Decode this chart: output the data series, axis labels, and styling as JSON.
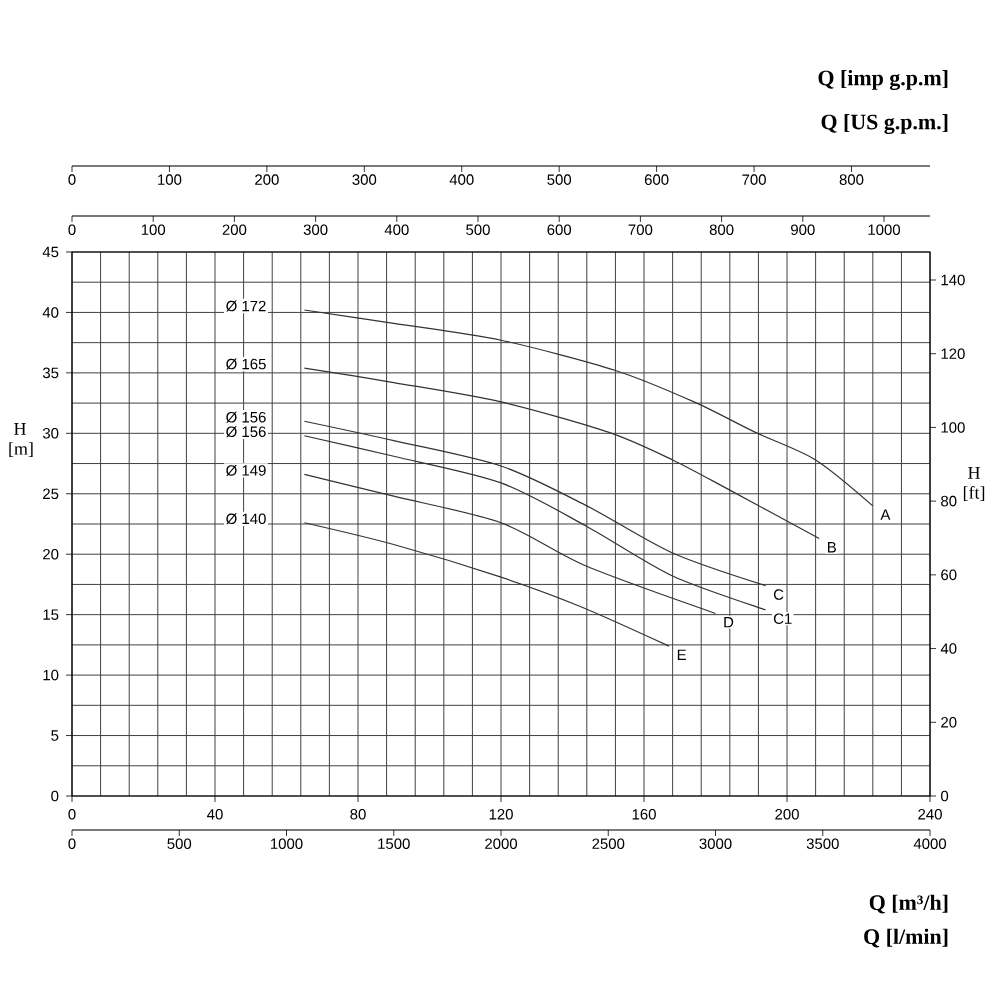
{
  "chart_data": {
    "type": "line",
    "xlabel": "Q [m³/h]",
    "ylabel": "H [m]",
    "y2label": "H [ft]",
    "x2label": "Q [imp g.p.m]",
    "xlim": [
      0,
      240
    ],
    "xticks": [
      0,
      40,
      80,
      120,
      160,
      200,
      240
    ],
    "ylim": [
      0,
      45
    ],
    "yticks": [
      0,
      5,
      10,
      15,
      20,
      25,
      30,
      35,
      40,
      45
    ],
    "y2lim": [
      0,
      147.6
    ],
    "y2ticks": [
      0,
      20,
      40,
      60,
      80,
      100,
      120,
      140
    ],
    "x2lim": [
      0,
      880.6
    ],
    "x2ticks": [
      0,
      100,
      200,
      300,
      400,
      500,
      600,
      700,
      800
    ],
    "grid": true,
    "legend": false,
    "marker": "none",
    "line_style": "solid",
    "series": [
      {
        "name": "Ø 172",
        "color": "#333333",
        "x": [
          65,
          90,
          120,
          152,
          174,
          191,
          208,
          224
        ],
        "values": [
          40.2,
          39.1,
          37.7,
          35.2,
          32.6,
          30.1,
          27.8,
          24.0
        ]
      },
      {
        "name": "Ø 165",
        "color": "#333333",
        "x": [
          65,
          90,
          120,
          150,
          168,
          184,
          209
        ],
        "values": [
          35.4,
          34.2,
          32.6,
          30.1,
          27.8,
          25.3,
          21.3
        ]
      },
      {
        "name": "Ø 156",
        "color": "#333333",
        "x": [
          65,
          90,
          120,
          144,
          168,
          194
        ],
        "values": [
          31.0,
          29.4,
          27.3,
          24.0,
          20.1,
          17.4
        ]
      },
      {
        "name": "Ø 156",
        "color": "#333333",
        "x": [
          65,
          90,
          120,
          144,
          168,
          194
        ],
        "values": [
          29.8,
          28.1,
          25.9,
          22.3,
          18.2,
          15.4
        ]
      },
      {
        "name": "Ø 149",
        "color": "#333333",
        "x": [
          65,
          90,
          120,
          144,
          180
        ],
        "values": [
          26.6,
          24.8,
          22.6,
          19.0,
          15.1
        ]
      },
      {
        "name": "Ø 140",
        "color": "#333333",
        "x": [
          65,
          90,
          120,
          142,
          167
        ],
        "values": [
          22.6,
          20.8,
          18.1,
          15.7,
          12.4
        ]
      }
    ],
    "annotations": [
      {
        "text": "A",
        "x": 224,
        "y": 24.0
      },
      {
        "text": "B",
        "x": 209,
        "y": 21.3
      },
      {
        "text": "C",
        "x": 194,
        "y": 17.4
      },
      {
        "text": "C1",
        "x": 194,
        "y": 15.4
      },
      {
        "text": "D",
        "x": 180,
        "y": 15.1
      },
      {
        "text": "E",
        "x": 167,
        "y": 12.4
      },
      "Q [l/min]",
      "0",
      "500",
      "1000",
      "1500",
      "2000",
      "2500",
      "3000",
      "3500",
      "4000",
      "Q [US g.p.m.]",
      "0",
      "100",
      "200",
      "300",
      "400",
      "500",
      "600",
      "700",
      "800",
      "900",
      "1000"
    ]
  }
}
